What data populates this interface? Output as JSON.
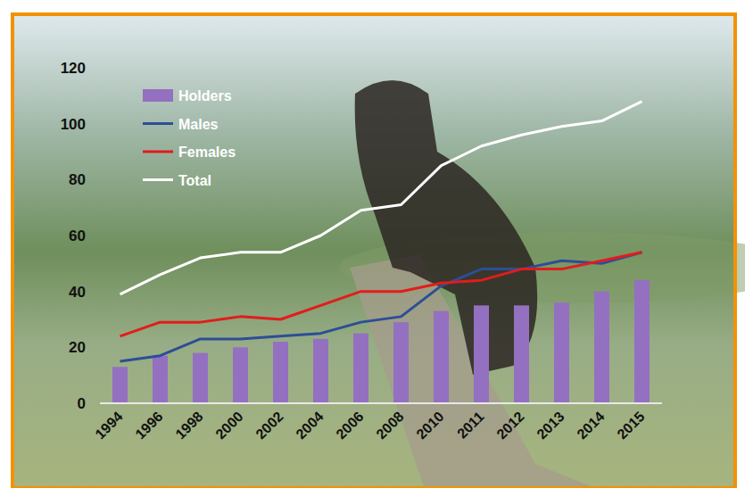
{
  "chart_data": {
    "type": "bar",
    "categories": [
      "1994",
      "1996",
      "1998",
      "2000",
      "2002",
      "2004",
      "2006",
      "2008",
      "2010",
      "2011",
      "2012",
      "2013",
      "2014",
      "2015"
    ],
    "series": [
      {
        "name": "Holders",
        "type": "bar",
        "color": "#9470c0",
        "values": [
          13,
          17,
          18,
          20,
          22,
          23,
          25,
          29,
          33,
          35,
          35,
          36,
          40,
          44
        ]
      },
      {
        "name": "Males",
        "type": "line",
        "color": "#2d4e96",
        "values": [
          15,
          17,
          23,
          23,
          24,
          25,
          29,
          31,
          42,
          48,
          48,
          51,
          50,
          54
        ]
      },
      {
        "name": "Females",
        "type": "line",
        "color": "#e21c1c",
        "values": [
          24,
          29,
          29,
          31,
          30,
          35,
          40,
          40,
          43,
          44,
          48,
          48,
          51,
          54
        ]
      },
      {
        "name": "Total",
        "type": "line",
        "color": "#ffffff",
        "values": [
          39,
          46,
          52,
          54,
          54,
          60,
          69,
          71,
          85,
          92,
          96,
          99,
          101,
          108
        ]
      }
    ],
    "ylim": [
      0,
      120
    ],
    "yticks": [
      0,
      20,
      40,
      60,
      80,
      100,
      120
    ],
    "grid": false,
    "legend": "top-left"
  }
}
